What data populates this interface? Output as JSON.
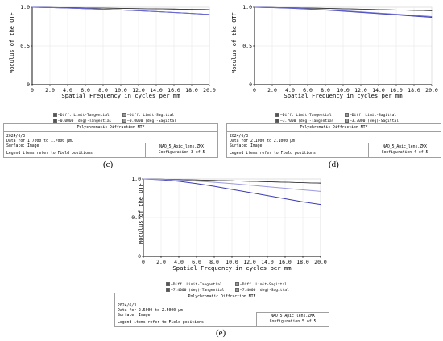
{
  "chart_data": [
    {
      "type": "line",
      "panel": "c",
      "xlabel": "Spatial Frequency in cycles per mm",
      "ylabel": "Modulus of the OTF",
      "xlim": [
        0,
        20
      ],
      "ylim": [
        0,
        1
      ],
      "xticks": [
        "0",
        "2.0",
        "4.0",
        "6.0",
        "8.0",
        "10.0",
        "12.0",
        "14.0",
        "16.0",
        "18.0",
        "20.0"
      ],
      "yticks": [
        "0",
        "0.5",
        "1.0"
      ],
      "series": [
        {
          "name": "Diff. Limit-Tangential",
          "color": "#111111",
          "x": [
            0,
            2,
            4,
            6,
            8,
            10,
            12,
            14,
            16,
            18,
            20
          ],
          "y": [
            1.0,
            0.997,
            0.994,
            0.991,
            0.988,
            0.985,
            0.982,
            0.979,
            0.976,
            0.973,
            0.97
          ]
        },
        {
          "name": "Diff. Limit-Sagittal",
          "color": "#444444",
          "x": [
            0,
            2,
            4,
            6,
            8,
            10,
            12,
            14,
            16,
            18,
            20
          ],
          "y": [
            1.0,
            0.997,
            0.994,
            0.991,
            0.988,
            0.985,
            0.982,
            0.979,
            0.976,
            0.973,
            0.97
          ]
        },
        {
          "name": "0.0000 (deg)-Tangential",
          "color": "#3b3bb5",
          "x": [
            0,
            2,
            4,
            6,
            8,
            10,
            12,
            14,
            16,
            18,
            20
          ],
          "y": [
            1.0,
            0.996,
            0.99,
            0.982,
            0.974,
            0.965,
            0.955,
            0.944,
            0.932,
            0.92,
            0.908
          ]
        },
        {
          "name": "0.0000 (deg)-Sagittal",
          "color": "#6a6ad0",
          "x": [
            0,
            2,
            4,
            6,
            8,
            10,
            12,
            14,
            16,
            18,
            20
          ],
          "y": [
            1.0,
            0.996,
            0.99,
            0.982,
            0.974,
            0.965,
            0.955,
            0.944,
            0.932,
            0.92,
            0.908
          ]
        }
      ],
      "legend": [
        "Diff. Limit-Tangential",
        "Diff. Limit-Sagittal",
        "0.0000 (deg)-Tangential",
        "0.0000 (deg)-Sagittal"
      ],
      "info": {
        "title": "Polychromatic Diffraction MTF",
        "date": "2024/6/3",
        "data_line": "Data for 1.7000 to 1.7000 μm.",
        "surface": "Surface: Image",
        "legend_note": "Legend items refer to Field positions",
        "file": "NAO_5_Apic_lens.ZMX",
        "config": "Configuration 3 of 5"
      },
      "caption": "(c)"
    },
    {
      "type": "line",
      "panel": "d",
      "xlabel": "Spatial Frequency in cycles per mm",
      "ylabel": "Modulus of the OTF",
      "xlim": [
        0,
        20
      ],
      "ylim": [
        0,
        1
      ],
      "xticks": [
        "0",
        "2.0",
        "4.0",
        "6.0",
        "8.0",
        "10.0",
        "12.0",
        "14.0",
        "16.0",
        "18.0",
        "20.0"
      ],
      "yticks": [
        "0",
        "0.5",
        "1.0"
      ],
      "series": [
        {
          "name": "Diff. Limit-Tangential",
          "color": "#111111",
          "x": [
            0,
            2,
            4,
            6,
            8,
            10,
            12,
            14,
            16,
            18,
            20
          ],
          "y": [
            1.0,
            0.997,
            0.993,
            0.989,
            0.985,
            0.98,
            0.975,
            0.97,
            0.965,
            0.96,
            0.955
          ]
        },
        {
          "name": "Diff. Limit-Sagittal",
          "color": "#444444",
          "x": [
            0,
            2,
            4,
            6,
            8,
            10,
            12,
            14,
            16,
            18,
            20
          ],
          "y": [
            1.0,
            0.997,
            0.993,
            0.989,
            0.985,
            0.98,
            0.975,
            0.97,
            0.965,
            0.96,
            0.955
          ]
        },
        {
          "name": "3.7000 (deg)-Tangential",
          "color": "#3b3bb5",
          "x": [
            0,
            2,
            4,
            6,
            8,
            10,
            12,
            14,
            16,
            18,
            20
          ],
          "y": [
            1.0,
            0.995,
            0.987,
            0.976,
            0.963,
            0.949,
            0.934,
            0.918,
            0.902,
            0.886,
            0.87
          ]
        },
        {
          "name": "3.7000 (deg)-Sagittal",
          "color": "#6a6ad0",
          "x": [
            0,
            2,
            4,
            6,
            8,
            10,
            12,
            14,
            16,
            18,
            20
          ],
          "y": [
            1.0,
            0.996,
            0.989,
            0.979,
            0.967,
            0.954,
            0.94,
            0.925,
            0.91,
            0.895,
            0.88
          ]
        }
      ],
      "legend": [
        "Diff. Limit-Tangential",
        "Diff. Limit-Sagittal",
        "3.7000 (deg)-Tangential",
        "3.7000 (deg)-Sagittal"
      ],
      "info": {
        "title": "Polychromatic Diffraction MTF",
        "date": "2024/6/3",
        "data_line": "Data for 2.1000 to 2.1000 μm.",
        "surface": "Surface: Image",
        "legend_note": "Legend items refer to Field positions",
        "file": "NAO_5_Apic_lens.ZMX",
        "config": "Configuration 4 of 5"
      },
      "caption": "(d)"
    },
    {
      "type": "line",
      "panel": "e",
      "xlabel": "Spatial Frequency in cycles per mm",
      "ylabel": "Modulus of the OTF",
      "xlim": [
        0,
        20
      ],
      "ylim": [
        0,
        1
      ],
      "xticks": [
        "0",
        "2.0",
        "4.0",
        "6.0",
        "8.0",
        "10.0",
        "12.0",
        "14.0",
        "16.0",
        "18.0",
        "20.0"
      ],
      "yticks": [
        "0",
        "0.5",
        "1.0"
      ],
      "series": [
        {
          "name": "Diff. Limit-Tangential",
          "color": "#111111",
          "x": [
            0,
            2,
            4,
            6,
            8,
            10,
            12,
            14,
            16,
            18,
            20
          ],
          "y": [
            1.0,
            0.997,
            0.992,
            0.987,
            0.982,
            0.976,
            0.97,
            0.964,
            0.958,
            0.952,
            0.946
          ]
        },
        {
          "name": "Diff. Limit-Sagittal",
          "color": "#444444",
          "x": [
            0,
            2,
            4,
            6,
            8,
            10,
            12,
            14,
            16,
            18,
            20
          ],
          "y": [
            1.0,
            0.997,
            0.992,
            0.987,
            0.982,
            0.976,
            0.97,
            0.964,
            0.958,
            0.952,
            0.946
          ]
        },
        {
          "name": "7.4000 (deg)-Tangential",
          "color": "#3b3bb5",
          "x": [
            0,
            2,
            4,
            6,
            8,
            10,
            12,
            14,
            16,
            18,
            20
          ],
          "y": [
            1.0,
            0.99,
            0.97,
            0.94,
            0.905,
            0.865,
            0.825,
            0.785,
            0.745,
            0.705,
            0.67
          ]
        },
        {
          "name": "7.4000 (deg)-Sagittal",
          "color": "#9a9ae0",
          "x": [
            0,
            2,
            4,
            6,
            8,
            10,
            12,
            14,
            16,
            18,
            20
          ],
          "y": [
            1.0,
            0.995,
            0.986,
            0.973,
            0.957,
            0.94,
            0.92,
            0.9,
            0.88,
            0.86,
            0.84
          ]
        }
      ],
      "legend": [
        "Diff. Limit-Tangential",
        "Diff. Limit-Sagittal",
        "7.4000 (deg)-Tangential",
        "7.4000 (deg)-Sagittal"
      ],
      "info": {
        "title": "Polychromatic Diffraction MTF",
        "date": "2024/6/3",
        "data_line": "Data for 2.5000 to 2.5000 μm.",
        "surface": "Surface: Image",
        "legend_note": "Legend items refer to Field positions",
        "file": "NAO_5_Apic_lens.ZMX",
        "config": "Configuration 5 of 5"
      },
      "caption": "(e)"
    }
  ]
}
